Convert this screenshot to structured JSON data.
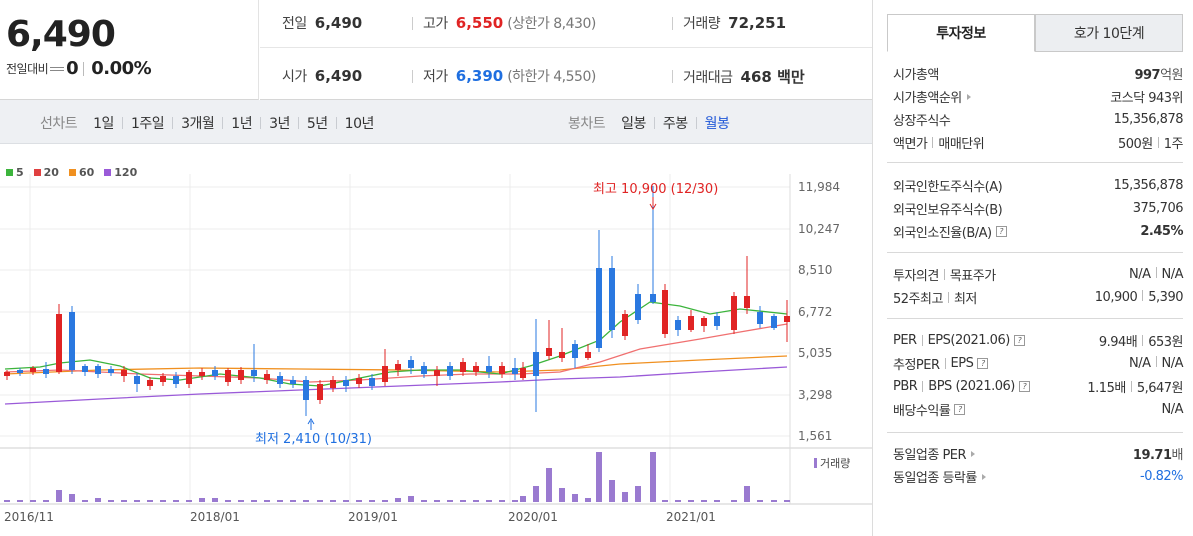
{
  "price": {
    "current": "6,490",
    "change_label": "전일대비",
    "change_value": "0",
    "change_rate": "0.00%"
  },
  "quote": {
    "prev_close_label": "전일",
    "prev_close": "6,490",
    "high_label": "고가",
    "high": "6,550",
    "upper_limit": "(상한가 8,430)",
    "volume_label": "거래량",
    "volume": "72,251",
    "open_label": "시가",
    "open": "6,490",
    "low_label": "저가",
    "low": "6,390",
    "lower_limit": "(하한가 4,550)",
    "amount_label": "거래대금",
    "amount": "468 백만"
  },
  "toolbar": {
    "line_chart_label": "선차트",
    "line_periods": [
      "1일",
      "1주일",
      "3개월",
      "1년",
      "3년",
      "5년",
      "10년"
    ],
    "candle_chart_label": "봉차트",
    "candle_periods": [
      "일봉",
      "주봉",
      "월봉"
    ],
    "active_candle_period": "월봉"
  },
  "chart": {
    "legend": [
      {
        "label": "5",
        "color": "#3cb43c"
      },
      {
        "label": "20",
        "color": "#e04040"
      },
      {
        "label": "60",
        "color": "#f09020"
      },
      {
        "label": "120",
        "color": "#9a5ad8"
      }
    ],
    "y_ticks": [
      "11,984",
      "10,247",
      "8,510",
      "6,772",
      "5,035",
      "3,298",
      "1,561"
    ],
    "x_ticks": [
      "2016/11",
      "2018/01",
      "2019/01",
      "2020/01",
      "2021/01"
    ],
    "max_annotation": "최고 10,900 (12/30)",
    "min_annotation": "최저 2,410 (10/31)",
    "volume_legend": "거래량",
    "up_color": "#e02424",
    "down_color": "#2a78e0"
  },
  "chart_data": {
    "type": "candlestick",
    "interval": "monthly",
    "y_range": [
      1561,
      11984
    ],
    "max": {
      "value": 10900,
      "date": "12/30"
    },
    "min": {
      "value": 2410,
      "date": "10/31"
    }
  },
  "panel": {
    "tabs": [
      "투자정보",
      "호가 10단계"
    ],
    "active_tab": "투자정보",
    "rows1": [
      {
        "k": "시가총액",
        "v_bold": "997",
        "v_unit": "억원"
      },
      {
        "k": "시가총액순위",
        "arrow": true,
        "v": "코스닥 943위"
      },
      {
        "k": "상장주식수",
        "v": "15,356,878"
      },
      {
        "k": "액면가",
        "k2": "매매단위",
        "v": "500원",
        "v2": "1주"
      }
    ],
    "rows2": [
      {
        "k": "외국인한도주식수(A)",
        "v": "15,356,878"
      },
      {
        "k": "외국인보유주식수(B)",
        "v": "375,706"
      },
      {
        "k": "외국인소진율(B/A)",
        "help": true,
        "v_bold": "2.45%"
      }
    ],
    "rows3": [
      {
        "k": "투자의견",
        "k2": "목표주가",
        "v": "N/A",
        "v2": "N/A"
      },
      {
        "k": "52주최고",
        "k2": "최저",
        "v": "10,900",
        "v2": "5,390"
      }
    ],
    "rows4": [
      {
        "k": "PER",
        "k2": "EPS(2021.06)",
        "help": true,
        "v": "9.94배",
        "v2": "653원"
      },
      {
        "k": "추정PER",
        "k2": "EPS",
        "help": true,
        "v": "N/A",
        "v2": "N/A"
      },
      {
        "k": "PBR",
        "k2": "BPS (2021.06)",
        "help": true,
        "v": "1.15배",
        "v2": "5,647원"
      },
      {
        "k": "배당수익률",
        "help": true,
        "v": "N/A"
      }
    ],
    "rows5": [
      {
        "k": "동일업종 PER",
        "arrow": true,
        "v_bold": "19.71",
        "v_unit": "배"
      },
      {
        "k": "동일업종 등락률",
        "arrow": true,
        "v_neg": "-0.82%"
      }
    ]
  }
}
